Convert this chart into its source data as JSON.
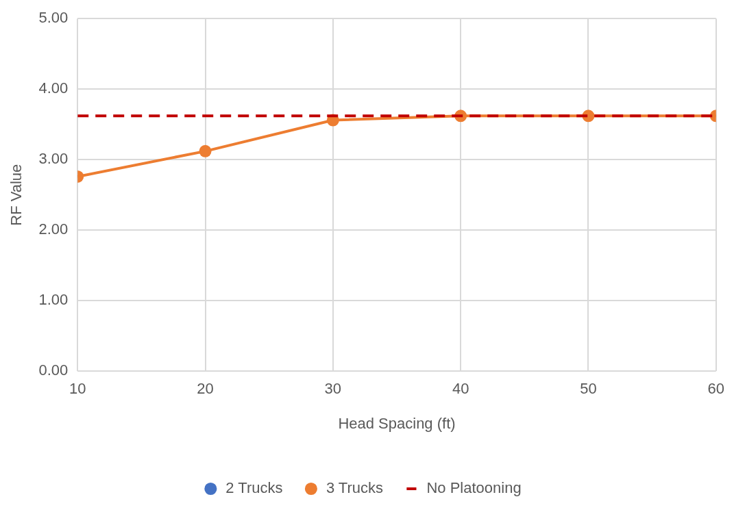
{
  "chart_data": {
    "type": "line",
    "xlabel": "Head Spacing (ft)",
    "ylabel": "RF Value",
    "x": [
      10,
      20,
      30,
      40,
      50,
      60
    ],
    "series": [
      {
        "name": "2 Trucks",
        "color": "#4472c4",
        "values": [
          null,
          null,
          null,
          null,
          null,
          null
        ],
        "marker": "circle"
      },
      {
        "name": "3 Trucks",
        "color": "#ed7d31",
        "values": [
          2.76,
          3.12,
          3.56,
          3.62,
          3.62,
          3.62
        ],
        "marker": "circle"
      },
      {
        "name": "No Platooning",
        "color": "#c00000",
        "values": [
          3.62,
          3.62,
          3.62,
          3.62,
          3.62,
          3.62
        ],
        "marker": "none",
        "line_style": "dashed"
      }
    ],
    "xlim": [
      10,
      60
    ],
    "xticks": [
      10,
      20,
      30,
      40,
      50,
      60
    ],
    "ylim": [
      0,
      5
    ],
    "yticks": [
      {
        "value": 0,
        "label": "0.00"
      },
      {
        "value": 1,
        "label": "1.00"
      },
      {
        "value": 2,
        "label": "2.00"
      },
      {
        "value": 3,
        "label": "3.00"
      },
      {
        "value": 4,
        "label": "4.00"
      },
      {
        "value": 5,
        "label": "5.00"
      }
    ],
    "grid": true,
    "legend": "bottom"
  }
}
